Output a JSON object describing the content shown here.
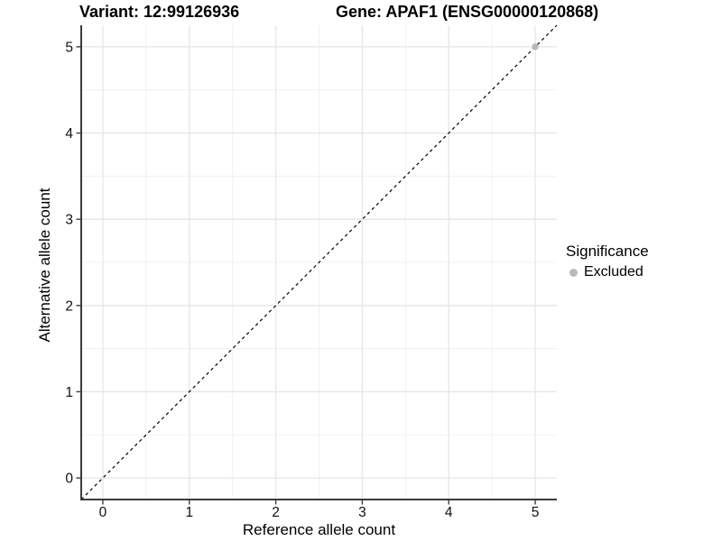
{
  "chart_data": {
    "type": "scatter",
    "title_left": "Variant: 12:99126936",
    "title_right": "Gene: APAF1 (ENSG00000120868)",
    "xlabel": "Reference allele count",
    "ylabel": "Alternative allele count",
    "xlim": [
      -0.25,
      5.25
    ],
    "ylim": [
      -0.25,
      5.25
    ],
    "x_ticks": [
      0,
      1,
      2,
      3,
      4,
      5
    ],
    "y_ticks": [
      0,
      1,
      2,
      3,
      4,
      5
    ],
    "x_minor_ticks": [
      0.5,
      1.5,
      2.5,
      3.5,
      4.5
    ],
    "y_minor_ticks": [
      0.5,
      1.5,
      2.5,
      3.5,
      4.5
    ],
    "grid": "major+minor",
    "identity_line": {
      "slope": 1,
      "intercept": 0,
      "style": "dashed",
      "color": "#000000"
    },
    "series": [
      {
        "name": "Excluded",
        "marker": "circle",
        "color": "#b9b9b9",
        "points": [
          {
            "x": 5,
            "y": 5
          }
        ]
      }
    ],
    "legend": {
      "title": "Significance",
      "position": "right",
      "items": [
        {
          "label": "Excluded",
          "color": "#b9b9b9"
        }
      ]
    },
    "style": {
      "background": "#ffffff",
      "grid_major_color": "#e6e6e6",
      "grid_minor_color": "#f0f0f0",
      "axis_line_color": "#3c3c3c",
      "tick_mark_color": "#3c3c3c",
      "tick_label_color": "#111111",
      "text_color": "#000000"
    }
  }
}
